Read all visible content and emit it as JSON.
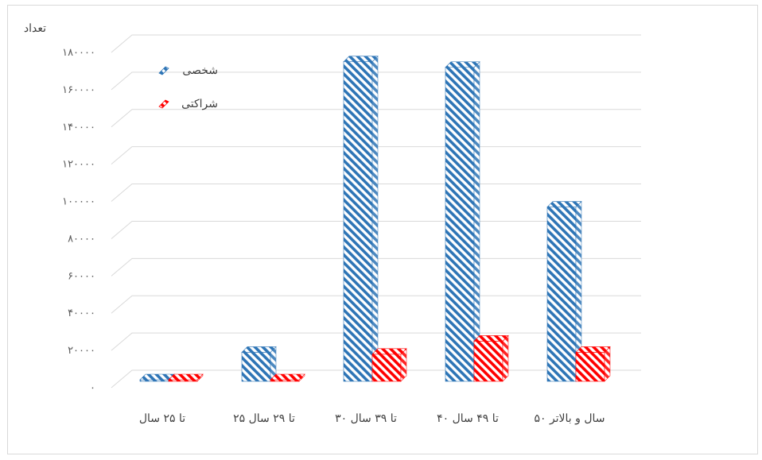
{
  "chart_data": {
    "type": "bar",
    "ylabel": "تعداد",
    "ylim": [
      0,
      180000
    ],
    "y_ticks": [
      "۰",
      "۲۰۰۰۰",
      "۴۰۰۰۰",
      "۶۰۰۰۰",
      "۸۰۰۰۰",
      "۱۰۰۰۰۰",
      "۱۲۰۰۰۰",
      "۱۴۰۰۰۰",
      "۱۶۰۰۰۰",
      "۱۸۰۰۰۰"
    ],
    "grid": true,
    "legend_position": "top-left",
    "categories": [
      "تا ۲۵ سال",
      "۲۵ تا ۲۹ سال",
      "۳۰ تا ۳۹ سال",
      "۴۰ تا ۴۹ سال",
      "۵۰ سال و بالاتر"
    ],
    "series": [
      {
        "name": "شخصی",
        "values": [
          1000,
          19000,
          175000,
          172000,
          97000
        ],
        "color": "#2e75b6"
      },
      {
        "name": "شراکتی",
        "values": [
          500,
          2000,
          18000,
          25000,
          19000
        ],
        "color": "#ff0000"
      }
    ]
  }
}
